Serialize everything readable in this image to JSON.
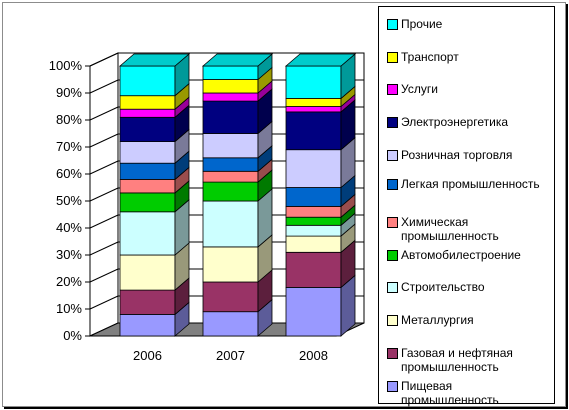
{
  "chart_data": {
    "type": "bar",
    "stacked": true,
    "percent": true,
    "three_d": true,
    "categories": [
      "2006",
      "2007",
      "2008"
    ],
    "y_ticks": [
      "0%",
      "10%",
      "20%",
      "30%",
      "40%",
      "50%",
      "60%",
      "70%",
      "80%",
      "90%",
      "100%"
    ],
    "ylim": [
      0,
      100
    ],
    "legend_position": "right",
    "series": [
      {
        "name": "Пищевая промышленность",
        "color": "#9999ff",
        "values": [
          8,
          9,
          18
        ]
      },
      {
        "name": "Газовая и нефтяная промышленность",
        "color": "#993366",
        "values": [
          9,
          11,
          13
        ]
      },
      {
        "name": "Металлургия",
        "color": "#ffffcc",
        "values": [
          13,
          13,
          6
        ]
      },
      {
        "name": "Строительство",
        "color": "#ccffff",
        "values": [
          16,
          17,
          4
        ]
      },
      {
        "name": "Автомобилестроение",
        "color": "#00cc00",
        "values": [
          7,
          7,
          3
        ]
      },
      {
        "name": "Химическая промышленность",
        "color": "#ff8080",
        "values": [
          5,
          4,
          4
        ]
      },
      {
        "name": "Легкая промышленность",
        "color": "#0066cc",
        "values": [
          6,
          5,
          7
        ]
      },
      {
        "name": "Розничная торговля",
        "color": "#ccccff",
        "values": [
          8,
          9,
          14
        ]
      },
      {
        "name": "Электроэнергетика",
        "color": "#000080",
        "values": [
          9,
          12,
          14
        ]
      },
      {
        "name": "Услуги",
        "color": "#ff00ff",
        "values": [
          3,
          3,
          2
        ]
      },
      {
        "name": "Транспорт",
        "color": "#ffff00",
        "values": [
          5,
          5,
          3
        ]
      },
      {
        "name": "Прочие",
        "color": "#00ffff",
        "values": [
          11,
          5,
          12
        ]
      }
    ]
  }
}
